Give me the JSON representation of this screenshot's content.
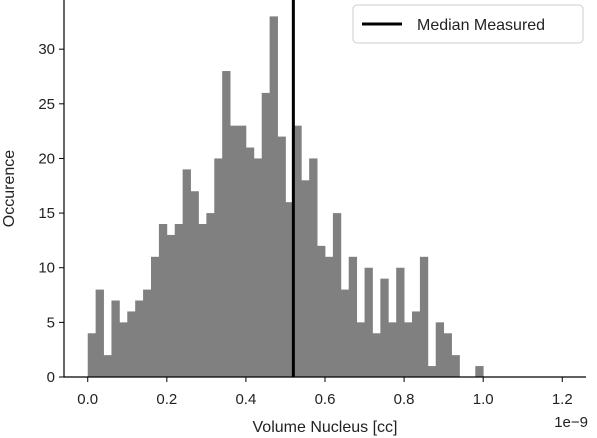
{
  "chart_data": {
    "type": "bar",
    "title": "",
    "xlabel": "Volume Nucleus [cc]",
    "ylabel": "Occurence",
    "x_offset_text": "1e−9",
    "x_scale": 1e-09,
    "xlim": [
      -0.06,
      1.26
    ],
    "ylim": [
      0,
      34.5
    ],
    "xticks": [
      0.0,
      0.2,
      0.4,
      0.6,
      0.8,
      1.0,
      1.2
    ],
    "xtick_labels": [
      "0.0",
      "0.2",
      "0.4",
      "0.6",
      "0.8",
      "1.0",
      "1.2"
    ],
    "yticks": [
      0,
      5,
      10,
      15,
      20,
      25,
      30
    ],
    "ytick_labels": [
      "0",
      "5",
      "10",
      "15",
      "20",
      "25",
      "30"
    ],
    "bin_start": 0.0,
    "bin_width": 0.02,
    "counts": [
      4,
      8,
      2,
      7,
      5,
      6,
      7,
      8,
      11,
      14,
      13,
      14,
      19,
      17,
      14,
      15,
      20,
      28,
      23,
      23,
      21,
      20,
      26,
      33,
      22,
      16,
      23,
      18,
      20,
      12,
      11,
      15,
      8,
      11,
      5,
      10,
      4,
      9,
      5,
      10,
      5,
      6,
      11,
      1,
      5,
      4,
      2,
      0,
      0,
      1
    ],
    "bar_color": "#808080",
    "vline": {
      "x": 0.52,
      "label": "Median Measured",
      "color": "#000000"
    },
    "legend": {
      "entries": [
        "Median Measured"
      ],
      "location": "top-right"
    },
    "grid": false,
    "spines": [
      "left",
      "bottom"
    ]
  }
}
